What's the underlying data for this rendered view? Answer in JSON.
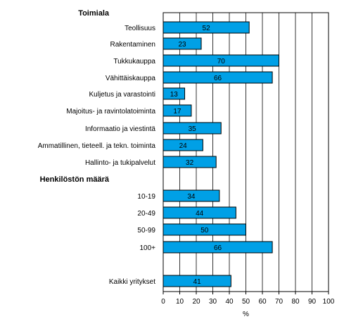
{
  "chart_data": {
    "type": "bar",
    "orientation": "horizontal",
    "xlabel": "%",
    "xlim": [
      0,
      100
    ],
    "xticks": [
      0,
      10,
      20,
      30,
      40,
      50,
      60,
      70,
      80,
      90,
      100
    ],
    "grid": "vertical",
    "bar_color": "#00A0E6",
    "groups": [
      {
        "title": "Toimiala",
        "categories": [
          "Teollisuus",
          "Rakentaminen",
          "Tukkukauppa",
          "Vähittäiskauppa",
          "Kuljetus ja varastointi",
          "Majoitus- ja ravintolatoiminta",
          "Informaatio ja viestintä",
          "Ammatillinen, tieteell. ja tekn. toiminta",
          "Hallinto- ja tukipalvelut"
        ],
        "values": [
          52,
          23,
          70,
          66,
          13,
          17,
          35,
          24,
          32
        ]
      },
      {
        "title": "Henkilöstön määrä",
        "categories": [
          "10-19",
          "20-49",
          "50-99",
          "100+"
        ],
        "values": [
          34,
          44,
          50,
          66
        ]
      },
      {
        "title": "",
        "categories": [
          "Kaikki yritykset"
        ],
        "values": [
          41
        ]
      }
    ]
  }
}
